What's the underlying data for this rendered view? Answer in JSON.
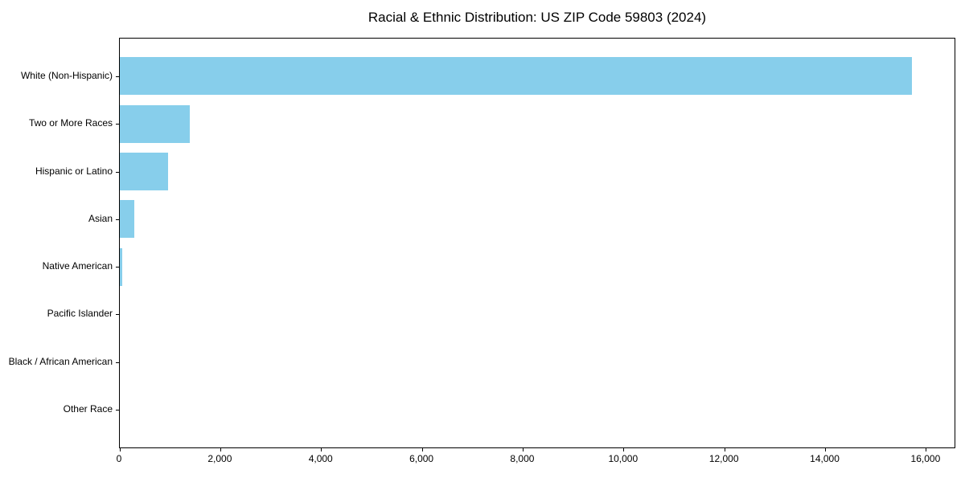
{
  "chart_data": {
    "type": "bar",
    "orientation": "horizontal",
    "title": "Racial & Ethnic Distribution: US ZIP Code 59803 (2024)",
    "categories": [
      "White (Non-Hispanic)",
      "Two or More Races",
      "Hispanic or Latino",
      "Asian",
      "Native American",
      "Pacific Islander",
      "Black / African American",
      "Other Race"
    ],
    "values": [
      15710,
      1380,
      955,
      280,
      50,
      0,
      0,
      0
    ],
    "bar_color": "#87CEEB",
    "axis_color": "#000000",
    "text_color": "#000000",
    "xlabel": "",
    "ylabel": "",
    "xlim": [
      0,
      16560
    ],
    "x_ticks": [
      0,
      2000,
      4000,
      6000,
      8000,
      10000,
      12000,
      14000,
      16000
    ],
    "x_tick_labels": [
      "0",
      "2,000",
      "4,000",
      "6,000",
      "8,000",
      "10,000",
      "12,000",
      "14,000",
      "16,000"
    ],
    "grid": false,
    "legend": null
  }
}
